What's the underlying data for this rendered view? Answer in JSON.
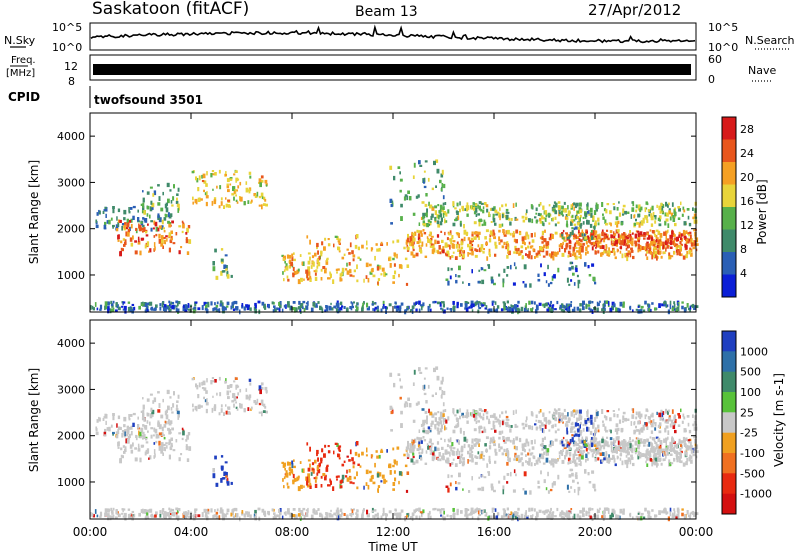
{
  "header": {
    "station": "Saskatoon (fitACF)",
    "beam": "Beam 13",
    "date": "27/Apr/2012"
  },
  "nsky_panel": {
    "left_label": "N.Sky",
    "left_ticks": [
      "10^5",
      "10^0"
    ],
    "right_ticks": [
      "10^5",
      "10^0"
    ],
    "right_label": "N.Search"
  },
  "freq_panel": {
    "left_label_1": "Freq.",
    "left_label_2": "[MHz]",
    "left_ticks": [
      "12",
      "8"
    ],
    "right_ticks": [
      "60",
      "0"
    ],
    "right_label": "Nave"
  },
  "cpid_panel": {
    "label": "CPID",
    "program": "twofsound 3501"
  },
  "chart_data": [
    {
      "type": "heatmap",
      "panel": "power",
      "ylabel": "Slant Range [km]",
      "y_ticks": [
        "1000",
        "2000",
        "3000",
        "4000"
      ],
      "ylim": [
        200,
        4500
      ],
      "xlim_hours": [
        0,
        24
      ],
      "colorbar": {
        "label": "Power [dB]",
        "ticks": [
          "4",
          "8",
          "12",
          "16",
          "20",
          "24",
          "28"
        ],
        "range": [
          0,
          30
        ],
        "colors": [
          "#0b1fd6",
          "#2a5fb5",
          "#3f8a6a",
          "#57b04a",
          "#e8d43a",
          "#f5a023",
          "#e8561c",
          "#d71a1a"
        ]
      }
    },
    {
      "type": "heatmap",
      "panel": "velocity",
      "ylabel": "Slant Range [km]",
      "y_ticks": [
        "1000",
        "2000",
        "3000",
        "4000"
      ],
      "ylim": [
        200,
        4500
      ],
      "xlim_hours": [
        0,
        24
      ],
      "colorbar": {
        "label": "Velocity [m s-1]",
        "ticks": [
          "1000",
          "500",
          "100",
          "25",
          "-25",
          "-100",
          "-500",
          "-1000"
        ],
        "colors": [
          "#1f3fc0",
          "#2e70a8",
          "#3f8a6a",
          "#58c23a",
          "#c8c8c8",
          "#f0a020",
          "#f07020",
          "#e82a10",
          "#d41010"
        ]
      }
    }
  ],
  "x_axis": {
    "ticks": [
      "00:00",
      "04:00",
      "08:00",
      "12:00",
      "16:00",
      "20:00",
      "00:00"
    ],
    "label": "Time UT"
  }
}
